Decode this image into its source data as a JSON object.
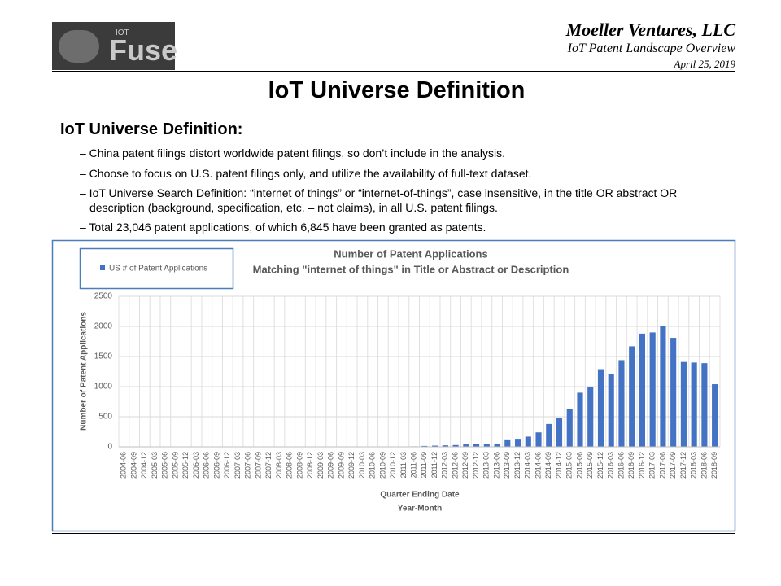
{
  "header": {
    "logo_small": "IOT",
    "logo_big": "Fuse",
    "company": "Moeller Ventures, LLC",
    "subtitle": "IoT Patent Landscape Overview",
    "date": "April 25, 2019"
  },
  "title": "IoT Universe Definition",
  "section": "IoT Universe Definition:",
  "bullets": [
    "– China patent filings distort worldwide patent filings, so don’t include in the analysis.",
    "– Choose to focus on U.S. patent filings only, and utilize the availability of full-text  dataset.",
    "– IoT Universe Search Definition: “internet of things” or “internet-of-things”,  case insensitive, in the title OR abstract OR description (background, specification, etc. – not claims), in all U.S. patent filings.",
    "– Total 23,046 patent applications, of which 6,845 have been granted as patents."
  ],
  "chart_data": {
    "type": "bar",
    "title": [
      "Number of Patent Applications",
      "Matching \"internet of things\" in Title or Abstract or Description"
    ],
    "xlabel": [
      "Quarter Ending Date",
      "Year-Month"
    ],
    "ylabel": "Number of Patent Applications",
    "categories": [
      "2004-06",
      "2004-09",
      "2004-12",
      "2005-03",
      "2005-06",
      "2005-09",
      "2005-12",
      "2006-03",
      "2006-06",
      "2006-09",
      "2006-12",
      "2007-03",
      "2007-06",
      "2007-09",
      "2007-12",
      "2008-03",
      "2008-06",
      "2008-09",
      "2008-12",
      "2009-03",
      "2009-06",
      "2009-09",
      "2009-12",
      "2010-03",
      "2010-06",
      "2010-09",
      "2010-12",
      "2011-03",
      "2011-06",
      "2011-09",
      "2011-12",
      "2012-03",
      "2012-06",
      "2012-09",
      "2012-12",
      "2013-03",
      "2013-06",
      "2013-09",
      "2013-12",
      "2014-03",
      "2014-06",
      "2014-09",
      "2014-12",
      "2015-03",
      "2015-06",
      "2015-09",
      "2015-12",
      "2016-03",
      "2016-06",
      "2016-09",
      "2016-12",
      "2017-03",
      "2017-06",
      "2017-09",
      "2017-12",
      "2018-03",
      "2018-06",
      "2018-09"
    ],
    "series": [
      {
        "name": "US # of Patent Applications",
        "color": "#4472c4",
        "values": [
          0,
          0,
          0,
          0,
          0,
          0,
          0,
          0,
          0,
          0,
          0,
          0,
          0,
          0,
          0,
          0,
          0,
          0,
          0,
          0,
          0,
          0,
          0,
          0,
          0,
          0,
          0,
          5,
          8,
          15,
          20,
          25,
          30,
          40,
          45,
          50,
          45,
          110,
          120,
          170,
          240,
          380,
          480,
          630,
          900,
          990,
          1290,
          1210,
          1440,
          1670,
          1880,
          1900,
          2000,
          1810,
          1410,
          1400,
          1390,
          1040
        ]
      }
    ],
    "ylim": [
      0,
      2500
    ],
    "yticks": [
      0,
      500,
      1000,
      1500,
      2000,
      2500
    ],
    "grid": true,
    "legend": "top-left"
  }
}
